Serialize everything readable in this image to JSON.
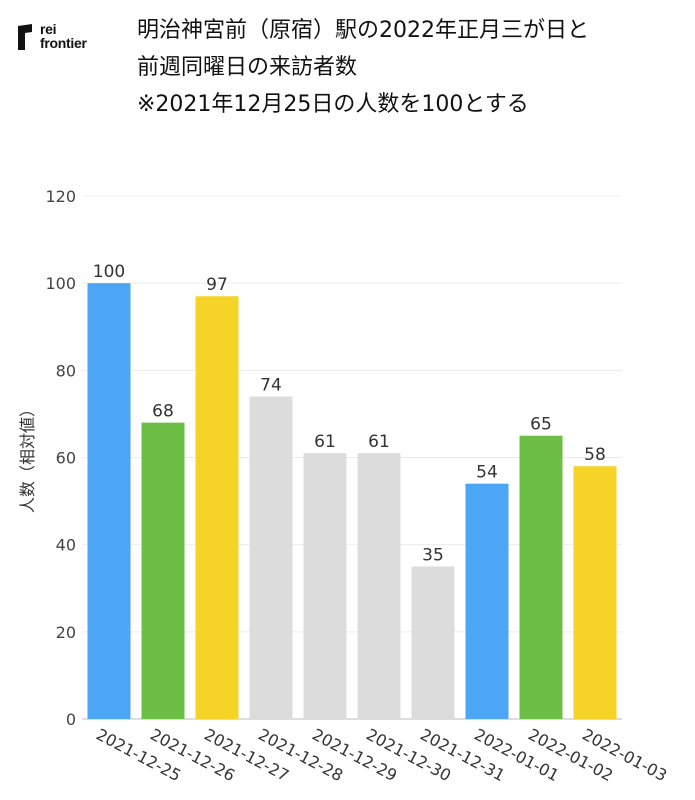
{
  "logo": {
    "line1": "rei",
    "line2": "frontier"
  },
  "title_lines": [
    "明治神宮前（原宿）駅の2022年正月三が日と",
    "前週同曜日の来訪者数",
    "※2021年12月25日の人数を100とする"
  ],
  "chart_data": {
    "type": "bar",
    "ylabel": "人数（相対値）",
    "ylim": [
      0,
      120
    ],
    "yticks": [
      0,
      20,
      40,
      60,
      80,
      100,
      120
    ],
    "grid": true,
    "categories": [
      "2021-12-25",
      "2021-12-26",
      "2021-12-27",
      "2021-12-28",
      "2021-12-29",
      "2021-12-30",
      "2021-12-31",
      "2022-01-01",
      "2022-01-02",
      "2022-01-03"
    ],
    "values": [
      100,
      68,
      97,
      74,
      61,
      61,
      35,
      54,
      65,
      58
    ],
    "colors": [
      "#4da6f5",
      "#6dbe45",
      "#f5d327",
      "#dcdcdc",
      "#dcdcdc",
      "#dcdcdc",
      "#dcdcdc",
      "#4da6f5",
      "#6dbe45",
      "#f5d327"
    ]
  }
}
